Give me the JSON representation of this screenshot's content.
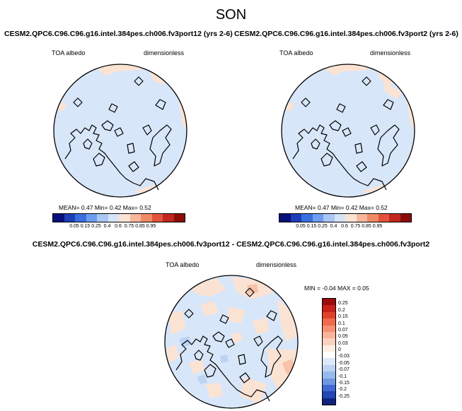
{
  "season": "SON",
  "panels": [
    {
      "title": "CESM2.QPC6.C96.C96.g16.intel.384pes.ch006.fv3port12 (yrs 2-6)",
      "variable": "TOA albedo",
      "units": "dimensionless",
      "stats": {
        "mean_label": "MEAN=",
        "mean": "0.47",
        "min_label": "Min=",
        "min": "0.42",
        "max_label": "Max=",
        "max": "0.52"
      }
    },
    {
      "title": "CESM2.QPC6.C96.C96.g16.intel.384pes.ch006.fv3port2 (yrs 2-6)",
      "variable": "TOA albedo",
      "units": "dimensionless",
      "stats": {
        "mean_label": "MEAN=",
        "mean": "0.47",
        "min_label": "Min=",
        "min": "0.42",
        "max_label": "Max=",
        "max": "0.52"
      }
    }
  ],
  "abs_colorbar": {
    "ticks": [
      "0.05",
      "0.15",
      "0.25",
      "0.4",
      "0.6",
      "0.75",
      "0.85",
      "0.95"
    ],
    "colors": [
      "#08107a",
      "#1d3fb8",
      "#3a6fe0",
      "#6f9df0",
      "#a9c6f4",
      "#d6e4f8",
      "#fbe3d4",
      "#f6b79a",
      "#ef8a66",
      "#e1533d",
      "#c1261f",
      "#8a0c0b"
    ]
  },
  "diff": {
    "title": "CESM2.QPC6.C96.C96.g16.intel.384pes.ch006.fv3port12 - CESM2.QPC6.C96.C96.g16.intel.384pes.ch006.fv3port2",
    "variable": "TOA albedo",
    "units": "dimensionless",
    "min_label": "MIN =",
    "min": "-0.04",
    "max_label": "MAX =",
    "max": "0.05",
    "ticks": [
      "0.25",
      "0.2",
      "0.15",
      "0.1",
      "0.07",
      "0.05",
      "0.03",
      "0",
      "-0.03",
      "-0.05",
      "-0.07",
      "-0.1",
      "-0.15",
      "-0.2",
      "-0.25"
    ],
    "colors": [
      "#9b0b0b",
      "#c7221a",
      "#e0412b",
      "#ee6a4a",
      "#f59172",
      "#f9b399",
      "#fbd2be",
      "#fdeee4",
      "#ffffff",
      "#dce9fb",
      "#bcd3f4",
      "#98b9ec",
      "#6f97e2",
      "#416bd3",
      "#2346b4",
      "#0d237e"
    ]
  }
}
